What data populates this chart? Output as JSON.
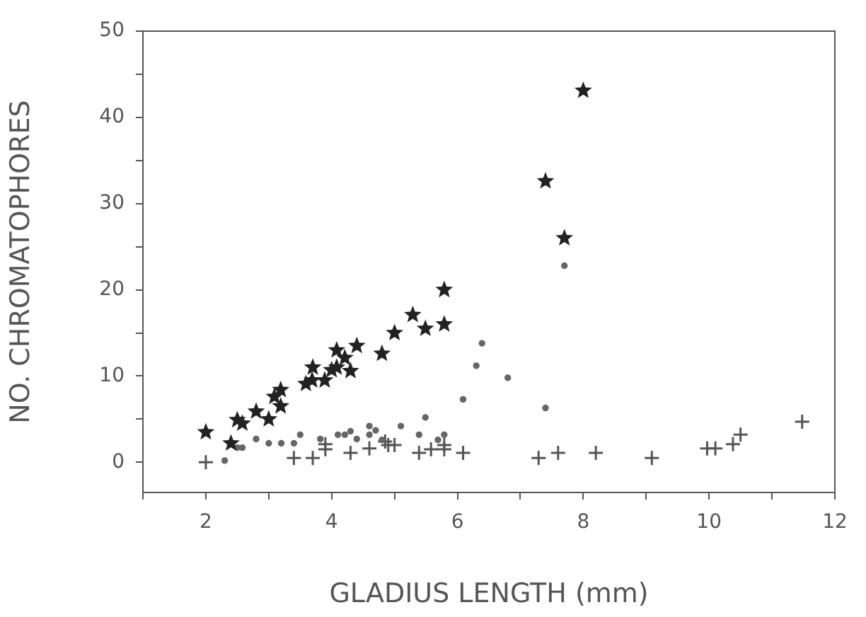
{
  "chart_data": {
    "type": "scatter",
    "xlabel": "GLADIUS LENGTH (mm)",
    "ylabel": "NO. CHROMATOPHORES",
    "xlim": [
      1,
      12
    ],
    "xticks": [
      {
        "value": 1,
        "label": null
      },
      2,
      {
        "value": 3,
        "label": null
      },
      4,
      {
        "value": 5,
        "label": null
      },
      6,
      {
        "value": 7,
        "label": null
      },
      8,
      {
        "value": 9,
        "label": null
      },
      10,
      {
        "value": 11,
        "label": null
      },
      12
    ],
    "ylim": [
      -3.5,
      50
    ],
    "yticks": [
      0,
      {
        "value": 5,
        "label": null
      },
      10,
      {
        "value": 15,
        "label": null
      },
      20,
      {
        "value": 25,
        "label": null
      },
      30,
      {
        "value": 35,
        "label": null
      },
      40,
      {
        "value": 45,
        "label": null
      },
      50
    ],
    "grid": false,
    "legend": false,
    "series": [
      {
        "color": "#222222",
        "marker": "star",
        "x": [
          2.0,
          2.4,
          2.5,
          2.58,
          2.8,
          3.0,
          3.09,
          3.19,
          3.19,
          3.59,
          3.69,
          3.7,
          3.89,
          4.0,
          4.08,
          4.08,
          4.21,
          4.3,
          4.4,
          4.8,
          5.0,
          5.29,
          5.49,
          5.79,
          5.79,
          7.4,
          7.7,
          8.0
        ],
        "values": [
          3.5,
          2.2,
          4.9,
          4.5,
          5.9,
          5.0,
          7.6,
          8.4,
          6.5,
          9.1,
          9.5,
          11.0,
          9.5,
          10.7,
          11.0,
          13.0,
          12.1,
          10.6,
          13.5,
          12.6,
          15.0,
          17.1,
          15.5,
          20.0,
          16.0,
          32.6,
          26.0,
          43.1
        ]
      },
      {
        "color": "#666666",
        "marker": "circle",
        "x": [
          2.3,
          2.5,
          2.58,
          2.8,
          3.0,
          3.2,
          3.4,
          3.5,
          3.82,
          4.1,
          4.21,
          4.3,
          4.4,
          4.6,
          4.6,
          4.7,
          4.8,
          5.1,
          5.39,
          5.49,
          5.69,
          5.79,
          6.09,
          6.3,
          6.39,
          6.8,
          7.4,
          7.7
        ],
        "values": [
          0.2,
          1.7,
          1.7,
          2.7,
          2.2,
          2.2,
          2.2,
          3.2,
          2.7,
          3.2,
          3.2,
          3.6,
          2.7,
          4.2,
          3.2,
          3.7,
          2.6,
          4.2,
          3.2,
          5.2,
          2.6,
          3.2,
          7.3,
          11.2,
          13.8,
          9.8,
          6.3,
          22.8
        ]
      },
      {
        "color": "#555555",
        "marker": "cross",
        "x": [
          2.0,
          2.4,
          3.4,
          3.7,
          3.9,
          3.9,
          4.3,
          4.6,
          4.85,
          4.9,
          5.0,
          5.39,
          5.58,
          5.79,
          5.79,
          6.09,
          7.29,
          7.6,
          8.2,
          9.09,
          9.97,
          10.1,
          10.38,
          10.5,
          11.48
        ],
        "values": [
          0,
          null,
          0.5,
          0.5,
          2.1,
          1.5,
          1.1,
          1.6,
          2.4,
          2.0,
          2.0,
          1.1,
          1.5,
          2.0,
          1.5,
          1.1,
          0.5,
          1.1,
          1.1,
          0.5,
          1.6,
          1.6,
          2.1,
          3.2,
          4.7
        ]
      }
    ]
  }
}
